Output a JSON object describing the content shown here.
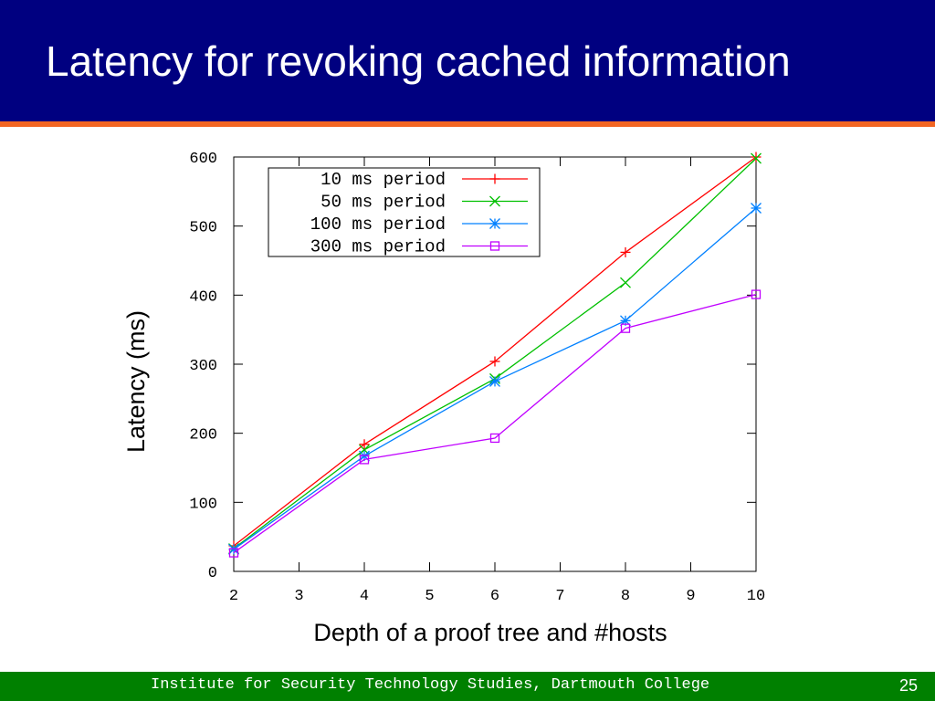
{
  "slide": {
    "title": "Latency for revoking cached information",
    "footer": "Institute for Security Technology Studies, Dartmouth College",
    "page_number": "25",
    "colors": {
      "title_bg": "#000080",
      "accent": "#f26522",
      "footer_bg": "#008000"
    }
  },
  "chart_data": {
    "type": "line",
    "xlabel": "Depth of a proof tree and #hosts",
    "ylabel": "Latency (ms)",
    "xlim": [
      2,
      10
    ],
    "ylim": [
      0,
      600
    ],
    "xticks": [
      "2",
      "3",
      "4",
      "5",
      "6",
      "7",
      "8",
      "9",
      "10"
    ],
    "yticks": [
      "0",
      "100",
      "200",
      "300",
      "400",
      "500",
      "600"
    ],
    "legend_position": "top-left",
    "x": [
      2,
      4,
      6,
      8,
      10
    ],
    "series": [
      {
        "name": "10 ms period",
        "color": "#ff0000",
        "marker": "plus",
        "values": [
          37,
          184,
          304,
          462,
          600
        ]
      },
      {
        "name": "50 ms period",
        "color": "#00c000",
        "marker": "cross",
        "values": [
          33,
          176,
          279,
          418,
          598
        ]
      },
      {
        "name": "100 ms period",
        "color": "#0080ff",
        "marker": "asterisk",
        "values": [
          32,
          167,
          275,
          363,
          526
        ]
      },
      {
        "name": "300 ms period",
        "color": "#c000ff",
        "marker": "square",
        "values": [
          27,
          162,
          193,
          352,
          401
        ]
      }
    ]
  }
}
